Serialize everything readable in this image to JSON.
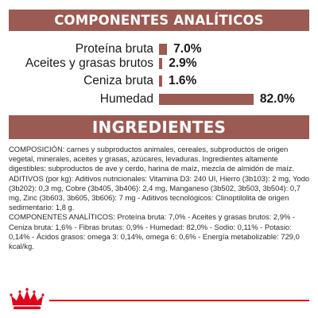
{
  "analytic": {
    "title": "COMPONENTES ANALÍTICOS",
    "bar_color": "#9b5a52",
    "rows": [
      {
        "label": "Proteína bruta",
        "value_text": "7.0%",
        "value": 7.0
      },
      {
        "label": "Aceites y grasas brutos",
        "value_text": "2.9%",
        "value": 2.9
      },
      {
        "label": "Ceniza bruta",
        "value_text": "1.6%",
        "value": 1.6
      },
      {
        "label": "Humedad",
        "value_text": "82.0%",
        "value": 82.0
      }
    ]
  },
  "ingredients": {
    "title": "INGREDIENTES",
    "composition": "COMPOSICIÓN: carnes y subproductos animales, cereales, subproductos de origen vegetal, minerales, aceites y grasas, azúcares, levaduras. Ingredientes altamente digestibles: subproductos de ave y cerdo, harina de maíz, mezcla de almidón de maíz.",
    "additives": "ADITIVOS (por kg): Aditivos nutricionales: Vitamina D3: 240 UI, Hierro (3b103): 2 mg, Yodo (3b202): 0,3 mg, Cobre (3b405, 3b406): 2,4 mg, Manganeso (3b502, 3b503, 3b504): 0,7 mg, Zinc (3b603, 3b605, 3b606): 7 mg - Aditivos tecnológicos: Clinoptilolita de origen sedimentario: 1,8 g.",
    "analytic_components": "COMPONENTES ANALÍTICOS: Proteína bruta: 7,0% - Aceites y grasas brutos: 2,9% - Ceniza bruta: 1,6% - Fibras brutas: 0,9% - Humedad: 82,0% - Sodio: 0,11% - Potasio: 0,14% - Ácidos grasos: omega 3: 0,14%, omega 6: 0,6% - Energía metabolizable: 729,0 kcal/kg."
  },
  "footer": {
    "logo": "royal-canin-crown-logo",
    "accent_color": "#e2001a"
  }
}
